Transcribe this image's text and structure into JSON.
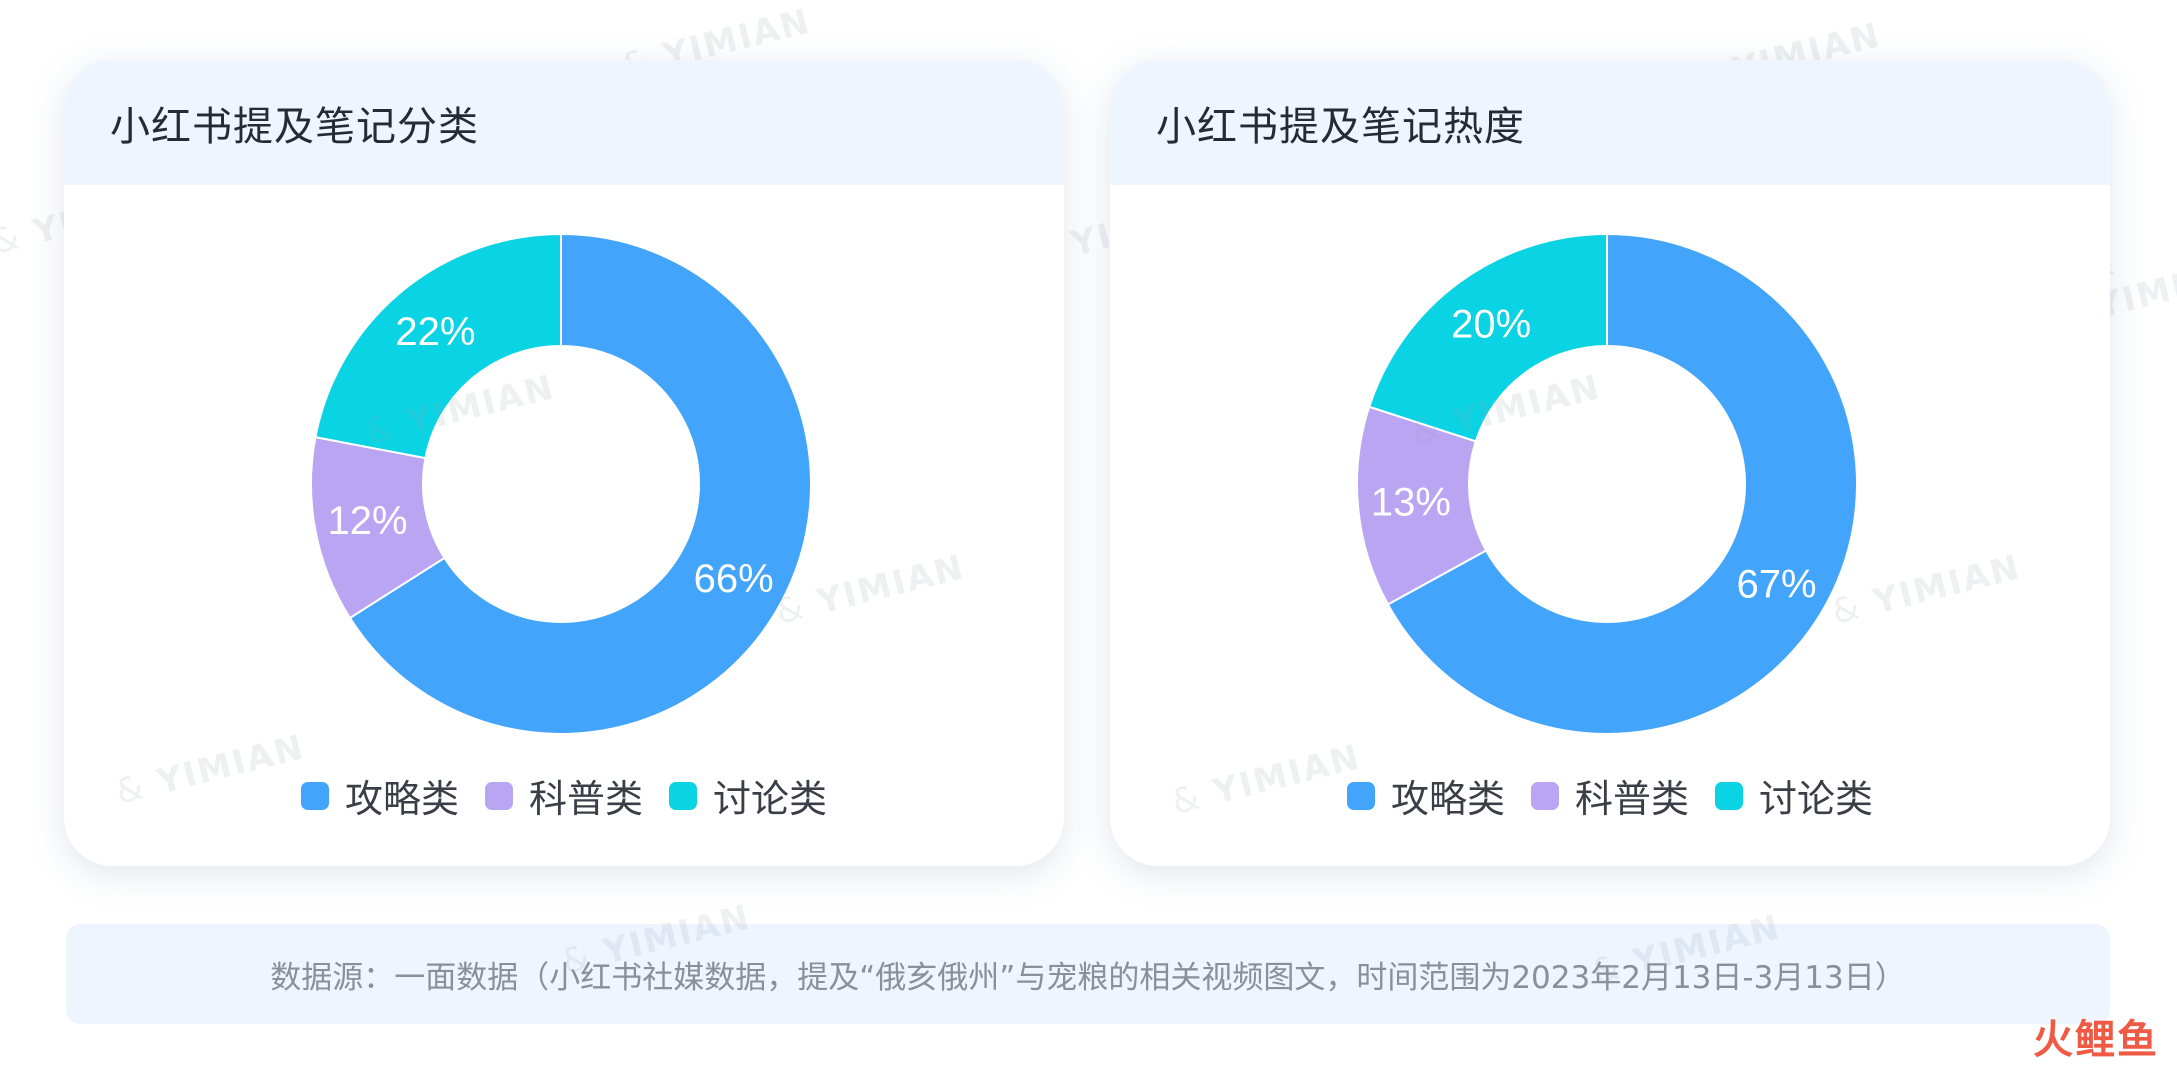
{
  "chart_data": [
    {
      "type": "pie",
      "title": "小红书提及笔记分类",
      "categories": [
        "攻略类",
        "科普类",
        "讨论类"
      ],
      "values": [
        66,
        12,
        22
      ],
      "value_labels": [
        "66%",
        "12%",
        "22%"
      ],
      "colors": [
        "#42a4fb",
        "#b9a5f2",
        "#0ad3e4"
      ],
      "legend": "bottom"
    },
    {
      "type": "pie",
      "title": "小红书提及笔记热度",
      "categories": [
        "攻略类",
        "科普类",
        "讨论类"
      ],
      "values": [
        67,
        13,
        20
      ],
      "value_labels": [
        "67%",
        "13%",
        "20%"
      ],
      "colors": [
        "#42a4fb",
        "#b9a5f2",
        "#0ad3e4"
      ],
      "legend": "bottom"
    }
  ],
  "footer": {
    "source": "数据源：一面数据（小红书社媒数据，提及“俄亥俄州”与宠粮的相关视频图文，时间范围为2023年2月13日-3月13日）"
  },
  "watermark": {
    "text": "YIMIAN",
    "icon": "yimian-logo-icon"
  },
  "brand": {
    "logo_text": "火鲤鱼"
  }
}
